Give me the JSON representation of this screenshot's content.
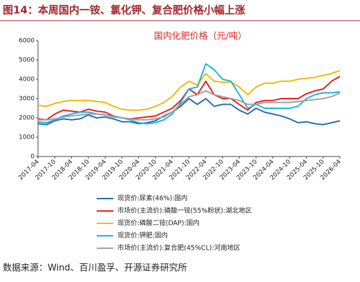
{
  "figure_title": "图14：本周国内一铵、氯化钾、复合肥价格小幅上涨",
  "source": "数据来源：Wind、百川盈孚、开源证券研究所",
  "chart_data": {
    "type": "line",
    "title": "国内化肥价格（元/吨）",
    "x": [
      "2017-04",
      "2017-07",
      "2017-10",
      "2018-01",
      "2018-04",
      "2018-07",
      "2018-10",
      "2019-01",
      "2019-04",
      "2019-07",
      "2019-10",
      "2020-01",
      "2020-04",
      "2020-07",
      "2020-10",
      "2021-01",
      "2021-04",
      "2021-07",
      "2021-10",
      "2022-01",
      "2022-04",
      "2022-07",
      "2022-10",
      "2023-01",
      "2023-04",
      "2023-07",
      "2023-10",
      "2024-01",
      "2024-04",
      "2024-07",
      "2024-10",
      "2025-01",
      "2025-04",
      "2025-07",
      "2025-10",
      "2026-01",
      "2026-04"
    ],
    "xticks": [
      "2017-04",
      "2017-10",
      "2018-04",
      "2018-10",
      "2019-04",
      "2019-10",
      "2020-04",
      "2020-10",
      "2021-04",
      "2021-10",
      "2022-04",
      "2022-10",
      "2023-04",
      "2023-10",
      "2024-04",
      "2024-10",
      "2025-04",
      "2025-10",
      "2026-04"
    ],
    "ylim": [
      0,
      6000
    ],
    "yticks": [
      0,
      1000,
      2000,
      3000,
      4000,
      5000,
      6000
    ],
    "series": [
      {
        "name": "现货价:尿素(46%):国内",
        "color": "#1f6fb4",
        "values": [
          1700,
          1650,
          1850,
          1950,
          1900,
          1950,
          2150,
          2000,
          2050,
          1950,
          1800,
          1800,
          1700,
          1750,
          1850,
          2100,
          2300,
          2600,
          3000,
          2700,
          3000,
          2600,
          2700,
          2700,
          2400,
          2200,
          2500,
          2300,
          2200,
          2100,
          1950,
          1750,
          1800,
          1700,
          1650,
          1750,
          1850
        ]
      },
      {
        "name": "市场价(主流价):磷酸一铵(55%粉状):湖北地区",
        "color": "#e8201c",
        "values": [
          1950,
          1900,
          2200,
          2400,
          2350,
          2300,
          2450,
          2350,
          2300,
          2100,
          2000,
          1950,
          2000,
          2050,
          2100,
          2300,
          2500,
          2900,
          3500,
          3200,
          3900,
          3200,
          3000,
          3000,
          2700,
          2400,
          2800,
          2900,
          2900,
          3000,
          3000,
          3000,
          3250,
          3400,
          3500,
          3900,
          4150
        ]
      },
      {
        "name": "现货价:磷酸二铵(DAP):国内",
        "color": "#f5b800",
        "values": [
          2650,
          2600,
          2750,
          2850,
          2900,
          2900,
          2900,
          2850,
          2800,
          2600,
          2450,
          2400,
          2400,
          2450,
          2600,
          2800,
          3100,
          3600,
          3900,
          3700,
          4300,
          3900,
          3850,
          3850,
          3600,
          3200,
          3600,
          3800,
          3800,
          3900,
          3900,
          4000,
          4050,
          4100,
          4200,
          4300,
          4450
        ]
      },
      {
        "name": "现货价:钾肥:国内",
        "color": "#19b4e6",
        "values": [
          1800,
          1750,
          1900,
          2100,
          2200,
          2300,
          2300,
          2200,
          2150,
          2100,
          2000,
          1900,
          1750,
          1700,
          1750,
          1900,
          2200,
          2800,
          3500,
          3600,
          4800,
          4500,
          4000,
          3900,
          3200,
          2500,
          2700,
          2500,
          2500,
          2500,
          2500,
          2600,
          3000,
          3200,
          3300,
          3300,
          3350
        ]
      },
      {
        "name": "市场价(主流价):复合肥(45%CL):河南地区",
        "color": "#a0a0a0",
        "values": [
          1900,
          1900,
          1950,
          2050,
          2100,
          2150,
          2200,
          2200,
          2150,
          2050,
          2000,
          1950,
          1900,
          1900,
          1950,
          2050,
          2300,
          2700,
          3100,
          3200,
          3400,
          3200,
          3100,
          3000,
          2900,
          2700,
          2700,
          2800,
          2800,
          2800,
          2800,
          2850,
          2900,
          2950,
          3000,
          3100,
          3300
        ]
      }
    ]
  }
}
